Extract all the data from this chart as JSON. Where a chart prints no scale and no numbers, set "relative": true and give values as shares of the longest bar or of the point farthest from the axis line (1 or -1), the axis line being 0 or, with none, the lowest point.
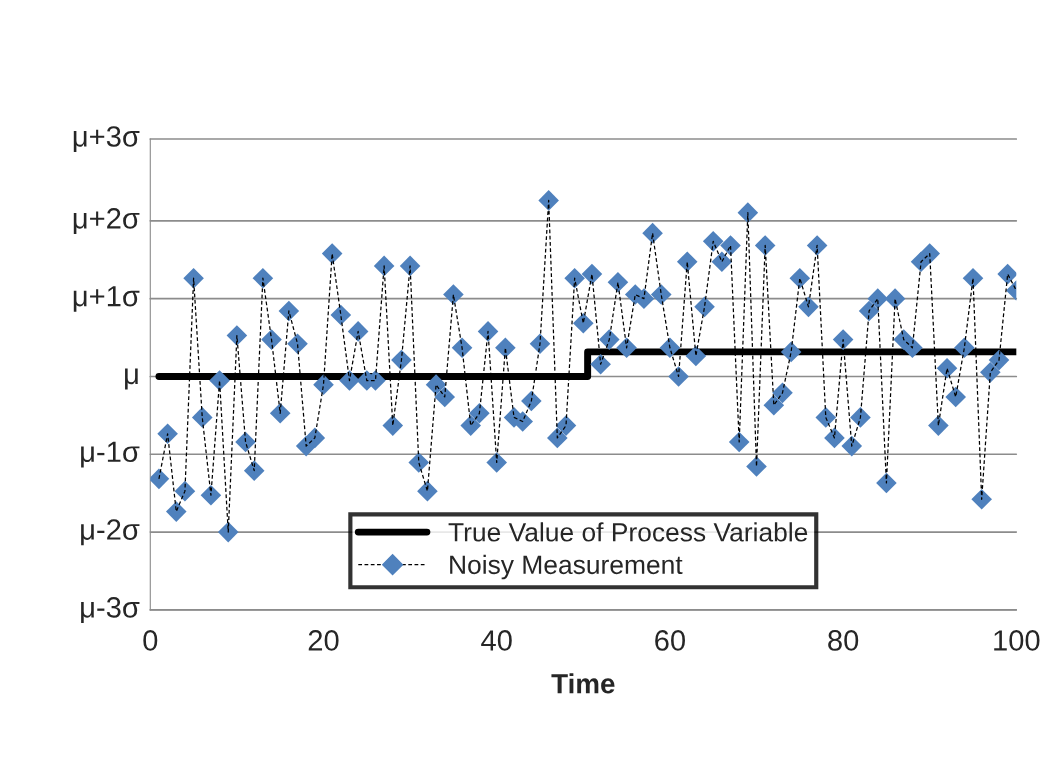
{
  "chart_data": {
    "type": "line",
    "xlabel": "Time",
    "relative": true,
    "xlim": [
      0,
      100
    ],
    "xticks": [
      0,
      20,
      40,
      60,
      80,
      100
    ],
    "legend": "bottom",
    "ref_lines": [
      {
        "axis": "y",
        "value": 0,
        "label": "μ-3σ",
        "color": "#8c8c8c"
      },
      {
        "axis": "y",
        "value": 0.19,
        "label": "μ-2σ",
        "color": "#8c8c8c"
      },
      {
        "axis": "y",
        "value": 0.38,
        "label": "μ-1σ",
        "color": "#8c8c8c"
      },
      {
        "axis": "y",
        "value": 0.57,
        "label": "μ",
        "color": "#8c8c8c"
      },
      {
        "axis": "y",
        "value": 0.76,
        "label": "μ+1σ",
        "color": "#8c8c8c"
      },
      {
        "axis": "y",
        "value": 0.95,
        "label": "μ+2σ",
        "color": "#8c8c8c"
      },
      {
        "axis": "y",
        "value": 1.15,
        "label": "μ+3σ",
        "color": "#8c8c8c"
      }
    ],
    "series": [
      {
        "name": "True Value of Process Variable",
        "color": "#000000",
        "marker": "none",
        "line_style": "solid",
        "x": [
          1,
          50.5,
          50.5,
          100
        ],
        "values": [
          0.57,
          0.57,
          0.63,
          0.63
        ]
      },
      {
        "name": "Noisy Measurement",
        "color": "#4f81bd",
        "marker": "diamond",
        "line_style": "dashed",
        "x": [
          1,
          2,
          3,
          4,
          5,
          6,
          7,
          8,
          9,
          10,
          11,
          12,
          13,
          14,
          15,
          16,
          17,
          18,
          19,
          20,
          21,
          22,
          23,
          24,
          25,
          26,
          27,
          28,
          29,
          30,
          31,
          32,
          33,
          34,
          35,
          36,
          37,
          38,
          39,
          40,
          41,
          42,
          43,
          44,
          45,
          46,
          47,
          48,
          49,
          50,
          51,
          52,
          53,
          54,
          55,
          56,
          57,
          58,
          59,
          60,
          61,
          62,
          63,
          64,
          65,
          66,
          67,
          68,
          69,
          70,
          71,
          72,
          73,
          74,
          75,
          76,
          77,
          78,
          79,
          80,
          81,
          82,
          83,
          84,
          85,
          86,
          87,
          88,
          89,
          90,
          91,
          92,
          93,
          94,
          95,
          96,
          97,
          98,
          99,
          100
        ],
        "values": [
          0.32,
          0.43,
          0.24,
          0.29,
          0.81,
          0.47,
          0.28,
          0.56,
          0.19,
          0.67,
          0.41,
          0.34,
          0.81,
          0.66,
          0.48,
          0.73,
          0.65,
          0.4,
          0.42,
          0.55,
          0.87,
          0.72,
          0.56,
          0.68,
          0.56,
          0.56,
          0.84,
          0.45,
          0.61,
          0.84,
          0.36,
          0.29,
          0.55,
          0.52,
          0.77,
          0.64,
          0.45,
          0.48,
          0.68,
          0.36,
          0.64,
          0.47,
          0.46,
          0.51,
          0.65,
          1.0,
          0.42,
          0.45,
          0.81,
          0.7,
          0.82,
          0.6,
          0.66,
          0.8,
          0.64,
          0.77,
          0.76,
          0.92,
          0.77,
          0.64,
          0.57,
          0.85,
          0.62,
          0.74,
          0.9,
          0.85,
          0.89,
          0.41,
          0.97,
          0.35,
          0.89,
          0.5,
          0.53,
          0.63,
          0.81,
          0.74,
          0.89,
          0.47,
          0.42,
          0.66,
          0.4,
          0.47,
          0.73,
          0.76,
          0.31,
          0.76,
          0.66,
          0.64,
          0.85,
          0.87,
          0.45,
          0.59,
          0.52,
          0.64,
          0.81,
          0.27,
          0.58,
          0.61,
          0.82,
          0.78
        ]
      }
    ]
  }
}
